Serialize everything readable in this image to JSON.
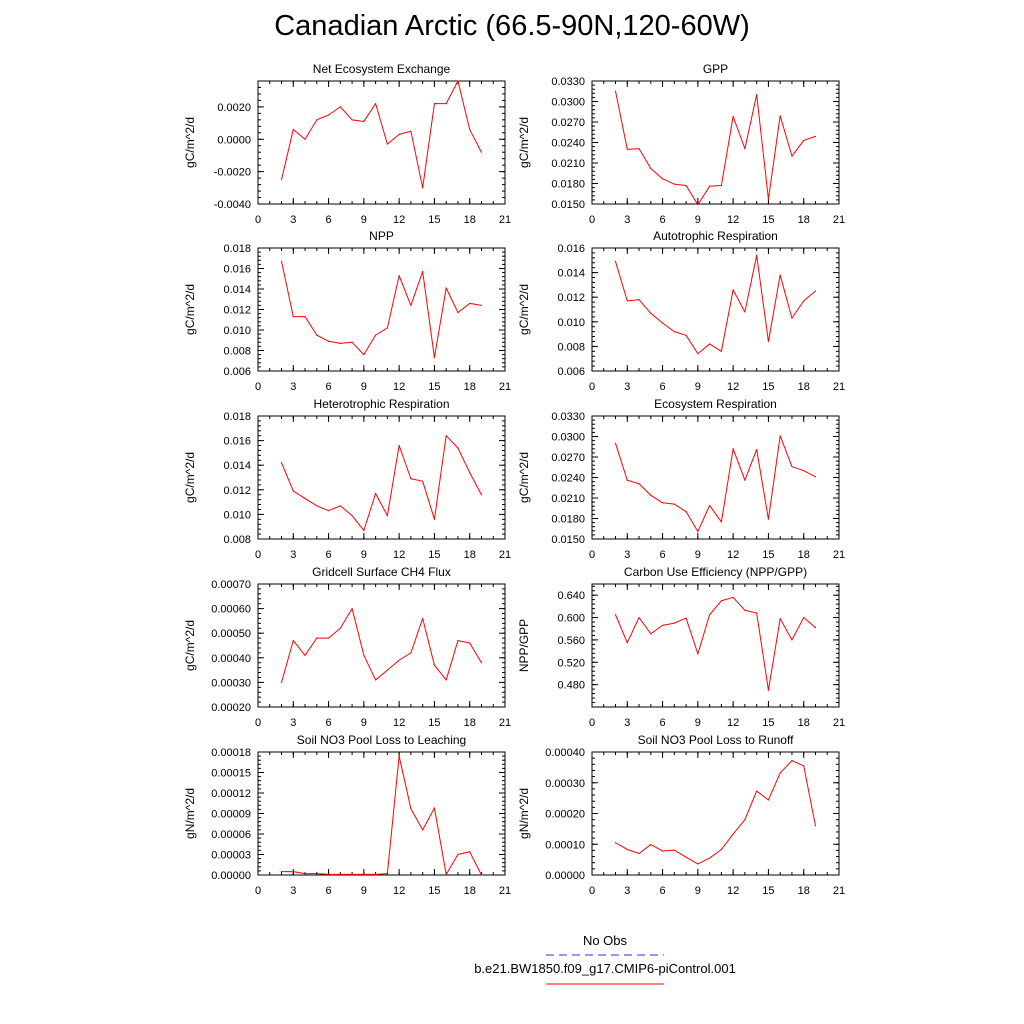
{
  "title": "Canadian Arctic (66.5-90N,120-60W)",
  "legend": [
    {
      "label": "No Obs",
      "color": "#3030c8",
      "dash": true
    },
    {
      "label": "b.e21.BW1850.f09_g17.CMIP6-piControl.001",
      "color": "#ff0000",
      "dash": false
    }
  ],
  "chart_data": [
    {
      "type": "line",
      "title": "Net Ecosystem Exchange",
      "ylabel": "gC/m^2/d",
      "xlim": [
        0,
        21
      ],
      "xticks": [
        0,
        3,
        6,
        9,
        12,
        15,
        18,
        21
      ],
      "ylim": [
        -0.004,
        0.0036
      ],
      "yticks": [
        -0.004,
        -0.002,
        0,
        0.002
      ],
      "ytick_labels": [
        "-0.0040",
        "-0.0020",
        "0.0000",
        "0.0020"
      ],
      "x": [
        2,
        3,
        4,
        5,
        6,
        7,
        8,
        9,
        10,
        11,
        12,
        13,
        14,
        15,
        16,
        17,
        18,
        19
      ],
      "series": [
        {
          "values": [
            -0.0025,
            0.0006,
            0.0,
            0.0012,
            0.0015,
            0.002,
            0.0012,
            0.0011,
            0.0022,
            -0.0003,
            0.0003,
            0.0005,
            -0.003,
            0.0022,
            0.0022,
            0.0036,
            0.0006,
            -0.0008
          ]
        }
      ]
    },
    {
      "type": "line",
      "title": "GPP",
      "ylabel": "gC/m^2/d",
      "xlim": [
        0,
        21
      ],
      "xticks": [
        0,
        3,
        6,
        9,
        12,
        15,
        18,
        21
      ],
      "ylim": [
        0.015,
        0.033
      ],
      "yticks": [
        0.015,
        0.018,
        0.021,
        0.024,
        0.027,
        0.03,
        0.033
      ],
      "ytick_labels": [
        "0.0150",
        "0.0180",
        "0.0210",
        "0.0240",
        "0.0270",
        "0.0300",
        "0.0330"
      ],
      "x": [
        2,
        3,
        4,
        5,
        6,
        7,
        8,
        9,
        10,
        11,
        12,
        13,
        14,
        15,
        16,
        17,
        18,
        19
      ],
      "series": [
        {
          "values": [
            0.0315,
            0.023,
            0.0231,
            0.0202,
            0.0187,
            0.0179,
            0.0177,
            0.0149,
            0.0176,
            0.0177,
            0.0278,
            0.0231,
            0.031,
            0.0157,
            0.0279,
            0.022,
            0.0243,
            0.0249
          ]
        }
      ]
    },
    {
      "type": "line",
      "title": "NPP",
      "ylabel": "gC/m^2/d",
      "xlim": [
        0,
        21
      ],
      "xticks": [
        0,
        3,
        6,
        9,
        12,
        15,
        18,
        21
      ],
      "ylim": [
        0.006,
        0.018
      ],
      "yticks": [
        0.006,
        0.008,
        0.01,
        0.012,
        0.014,
        0.016,
        0.018
      ],
      "ytick_labels": [
        "0.006",
        "0.008",
        "0.010",
        "0.012",
        "0.014",
        "0.016",
        "0.018"
      ],
      "x": [
        2,
        3,
        4,
        5,
        6,
        7,
        8,
        9,
        10,
        11,
        12,
        13,
        14,
        15,
        16,
        17,
        18,
        19
      ],
      "series": [
        {
          "values": [
            0.0167,
            0.0113,
            0.0113,
            0.0095,
            0.0089,
            0.0087,
            0.0088,
            0.0076,
            0.0095,
            0.0102,
            0.0153,
            0.0124,
            0.0157,
            0.0073,
            0.0141,
            0.0117,
            0.0126,
            0.0124
          ]
        }
      ]
    },
    {
      "type": "line",
      "title": "Autotrophic Respiration",
      "ylabel": "gC/m^2/d",
      "xlim": [
        0,
        21
      ],
      "xticks": [
        0,
        3,
        6,
        9,
        12,
        15,
        18,
        21
      ],
      "ylim": [
        0.006,
        0.016
      ],
      "yticks": [
        0.006,
        0.008,
        0.01,
        0.012,
        0.014,
        0.016
      ],
      "ytick_labels": [
        "0.006",
        "0.008",
        "0.010",
        "0.012",
        "0.014",
        "0.016"
      ],
      "x": [
        2,
        3,
        4,
        5,
        6,
        7,
        8,
        9,
        10,
        11,
        12,
        13,
        14,
        15,
        16,
        17,
        18,
        19
      ],
      "series": [
        {
          "values": [
            0.0149,
            0.0117,
            0.0118,
            0.0107,
            0.0099,
            0.0092,
            0.0089,
            0.0074,
            0.0082,
            0.0076,
            0.0126,
            0.0108,
            0.0154,
            0.0084,
            0.0138,
            0.0103,
            0.0117,
            0.0125
          ]
        }
      ]
    },
    {
      "type": "line",
      "title": "Heterotrophic Respiration",
      "ylabel": "gC/m^2/d",
      "xlim": [
        0,
        21
      ],
      "xticks": [
        0,
        3,
        6,
        9,
        12,
        15,
        18,
        21
      ],
      "ylim": [
        0.008,
        0.018
      ],
      "yticks": [
        0.008,
        0.01,
        0.012,
        0.014,
        0.016,
        0.018
      ],
      "ytick_labels": [
        "0.008",
        "0.010",
        "0.012",
        "0.014",
        "0.016",
        "0.018"
      ],
      "x": [
        2,
        3,
        4,
        5,
        6,
        7,
        8,
        9,
        10,
        11,
        12,
        13,
        14,
        15,
        16,
        17,
        18,
        19
      ],
      "series": [
        {
          "values": [
            0.0142,
            0.0119,
            0.0113,
            0.0107,
            0.0103,
            0.0107,
            0.0099,
            0.0087,
            0.0117,
            0.0099,
            0.0156,
            0.0129,
            0.0127,
            0.0096,
            0.0164,
            0.0154,
            0.0134,
            0.0116
          ]
        }
      ]
    },
    {
      "type": "line",
      "title": "Ecosystem Respiration",
      "ylabel": "gC/m^2/d",
      "xlim": [
        0,
        21
      ],
      "xticks": [
        0,
        3,
        6,
        9,
        12,
        15,
        18,
        21
      ],
      "ylim": [
        0.015,
        0.033
      ],
      "yticks": [
        0.015,
        0.018,
        0.021,
        0.024,
        0.027,
        0.03,
        0.033
      ],
      "ytick_labels": [
        "0.0150",
        "0.0180",
        "0.0210",
        "0.0240",
        "0.0270",
        "0.0300",
        "0.0330"
      ],
      "x": [
        2,
        3,
        4,
        5,
        6,
        7,
        8,
        9,
        10,
        11,
        12,
        13,
        14,
        15,
        16,
        17,
        18,
        19
      ],
      "series": [
        {
          "values": [
            0.029,
            0.0236,
            0.0231,
            0.0214,
            0.0203,
            0.0201,
            0.019,
            0.0161,
            0.0199,
            0.0175,
            0.0282,
            0.0236,
            0.0281,
            0.0179,
            0.0301,
            0.0256,
            0.025,
            0.0241
          ]
        }
      ]
    },
    {
      "type": "line",
      "title": "Gridcell Surface CH4 Flux",
      "ylabel": "gC/m^2/d",
      "xlim": [
        0,
        21
      ],
      "xticks": [
        0,
        3,
        6,
        9,
        12,
        15,
        18,
        21
      ],
      "ylim": [
        0.0002,
        0.0007
      ],
      "yticks": [
        0.0002,
        0.0003,
        0.0004,
        0.0005,
        0.0006,
        0.0007
      ],
      "ytick_labels": [
        "0.00020",
        "0.00030",
        "0.00040",
        "0.00050",
        "0.00060",
        "0.00070"
      ],
      "x": [
        2,
        3,
        4,
        5,
        6,
        7,
        8,
        9,
        10,
        11,
        12,
        13,
        14,
        15,
        16,
        17,
        18,
        19
      ],
      "series": [
        {
          "values": [
            0.0003,
            0.00047,
            0.00041,
            0.00048,
            0.00048,
            0.00052,
            0.0006,
            0.00041,
            0.00031,
            0.00035,
            0.00039,
            0.00042,
            0.00056,
            0.00037,
            0.00031,
            0.00047,
            0.00046,
            0.00038
          ]
        }
      ]
    },
    {
      "type": "line",
      "title": "Carbon Use Efficiency (NPP/GPP)",
      "ylabel": "NPP/GPP",
      "xlim": [
        0,
        21
      ],
      "xticks": [
        0,
        3,
        6,
        9,
        12,
        15,
        18,
        21
      ],
      "ylim": [
        0.44,
        0.66
      ],
      "yticks": [
        0.48,
        0.52,
        0.56,
        0.6,
        0.64
      ],
      "ytick_labels": [
        "0.480",
        "0.520",
        "0.560",
        "0.600",
        "0.640"
      ],
      "x": [
        2,
        3,
        4,
        5,
        6,
        7,
        8,
        9,
        10,
        11,
        12,
        13,
        14,
        15,
        16,
        17,
        18,
        19
      ],
      "series": [
        {
          "values": [
            0.605,
            0.555,
            0.6,
            0.571,
            0.586,
            0.59,
            0.599,
            0.535,
            0.605,
            0.63,
            0.636,
            0.613,
            0.608,
            0.47,
            0.598,
            0.56,
            0.6,
            0.582
          ]
        }
      ]
    },
    {
      "type": "line",
      "title": "Soil NO3 Pool Loss to Leaching",
      "ylabel": "gN/m^2/d",
      "xlim": [
        0,
        21
      ],
      "xticks": [
        0,
        3,
        6,
        9,
        12,
        15,
        18,
        21
      ],
      "ylim": [
        0,
        0.00018
      ],
      "yticks": [
        0,
        3e-05,
        6e-05,
        9e-05,
        0.00012,
        0.00015,
        0.00018
      ],
      "ytick_labels": [
        "0.00000",
        "0.00003",
        "0.00006",
        "0.00009",
        "0.00012",
        "0.00015",
        "0.00018"
      ],
      "x": [
        2,
        3,
        4,
        5,
        6,
        7,
        8,
        9,
        10,
        11,
        12,
        13,
        14,
        15,
        16,
        17,
        18,
        19
      ],
      "series": [
        {
          "values": [
            5e-06,
            5e-06,
            2e-06,
            2e-06,
            1e-06,
            1e-06,
            1e-06,
            1e-06,
            1e-06,
            2e-06,
            0.000174,
            9.7e-05,
            6.6e-05,
            9.8e-05,
            1e-06,
            3e-05,
            3.4e-05,
            0.0
          ]
        }
      ]
    },
    {
      "type": "line",
      "title": "Soil NO3 Pool Loss to Runoff",
      "ylabel": "gN/m^2/d",
      "xlim": [
        0,
        21
      ],
      "xticks": [
        0,
        3,
        6,
        9,
        12,
        15,
        18,
        21
      ],
      "ylim": [
        0,
        0.0004
      ],
      "yticks": [
        0,
        0.0001,
        0.0002,
        0.0003,
        0.0004
      ],
      "ytick_labels": [
        "0.00000",
        "0.00010",
        "0.00020",
        "0.00030",
        "0.00040"
      ],
      "x": [
        2,
        3,
        4,
        5,
        6,
        7,
        8,
        9,
        10,
        11,
        12,
        13,
        14,
        15,
        16,
        17,
        18,
        19
      ],
      "series": [
        {
          "values": [
            0.000105,
            8.3e-05,
            7e-05,
            9.9e-05,
            7.8e-05,
            8.1e-05,
            5.8e-05,
            3.6e-05,
            5.5e-05,
            8.3e-05,
            0.000133,
            0.00018,
            0.000273,
            0.000244,
            0.000332,
            0.000372,
            0.000355,
            0.00016
          ]
        }
      ]
    }
  ]
}
